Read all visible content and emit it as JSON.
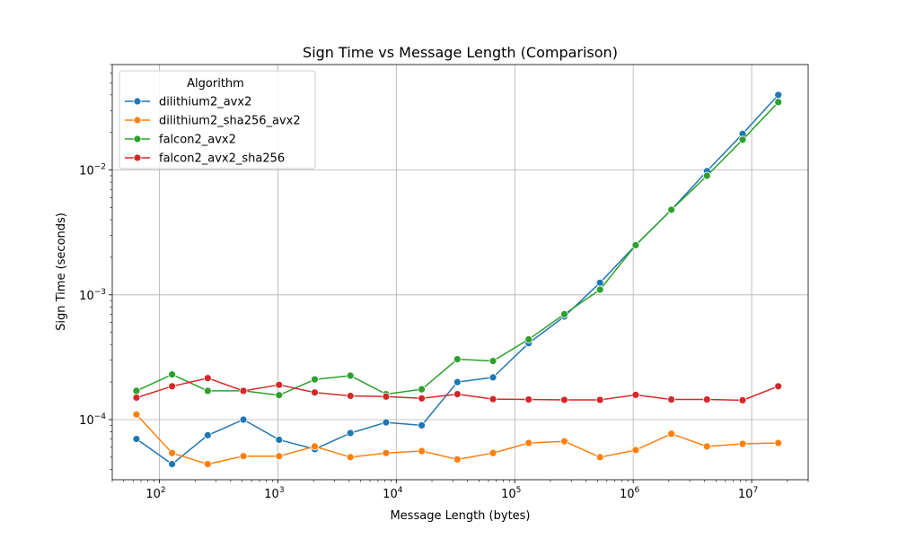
{
  "chart_data": {
    "type": "line",
    "title": "Sign Time vs Message Length (Comparison)",
    "xlabel": "Message Length (bytes)",
    "ylabel": "Sign Time (seconds)",
    "xscale": "log",
    "yscale": "log",
    "xlim": [
      40,
      30000000
    ],
    "ylim": [
      3.3e-05,
      0.07
    ],
    "grid": true,
    "legend_title": "Algorithm",
    "legend_position": "upper-left",
    "x_tick_labels": [
      {
        "base": "10",
        "exp": "2"
      },
      {
        "base": "10",
        "exp": "3"
      },
      {
        "base": "10",
        "exp": "4"
      },
      {
        "base": "10",
        "exp": "5"
      },
      {
        "base": "10",
        "exp": "6"
      },
      {
        "base": "10",
        "exp": "7"
      }
    ],
    "y_tick_labels": [
      {
        "base": "10",
        "exp": "−4"
      },
      {
        "base": "10",
        "exp": "−3"
      },
      {
        "base": "10",
        "exp": "−2"
      }
    ],
    "x": [
      64,
      128,
      256,
      512,
      1024,
      2048,
      4096,
      8192,
      16384,
      32768,
      65536,
      131072,
      262144,
      524288,
      1048576,
      2097152,
      4194304,
      8388608,
      16777216
    ],
    "series": [
      {
        "name": "dilithium2_avx2",
        "color": "#1f77b4",
        "values": [
          7e-05,
          4.4e-05,
          7.5e-05,
          0.0001,
          6.9e-05,
          5.8e-05,
          7.8e-05,
          9.5e-05,
          9e-05,
          0.0002,
          0.000218,
          0.00041,
          0.00067,
          0.00125,
          0.0025,
          0.0048,
          0.0098,
          0.0195,
          0.04
        ]
      },
      {
        "name": "dilithium2_sha256_avx2",
        "color": "#ff7f0e",
        "values": [
          0.00011,
          5.4e-05,
          4.4e-05,
          5.1e-05,
          5.1e-05,
          6.1e-05,
          5e-05,
          5.4e-05,
          5.6e-05,
          4.8e-05,
          5.4e-05,
          6.5e-05,
          6.7e-05,
          5e-05,
          5.7e-05,
          7.7e-05,
          6.1e-05,
          6.4e-05,
          6.5e-05
        ]
      },
      {
        "name": "falcon2_avx2",
        "color": "#2ca02c",
        "values": [
          0.00017,
          0.00023,
          0.00017,
          0.00017,
          0.000157,
          0.00021,
          0.000225,
          0.00016,
          0.000175,
          0.000305,
          0.000295,
          0.00044,
          0.0007,
          0.0011,
          0.0025,
          0.0048,
          0.009,
          0.0175,
          0.035
        ]
      },
      {
        "name": "falcon2_avx2_sha256",
        "color": "#d62728",
        "values": [
          0.00015,
          0.000185,
          0.000215,
          0.00017,
          0.00019,
          0.000165,
          0.000155,
          0.000153,
          0.000148,
          0.00016,
          0.000146,
          0.000145,
          0.000144,
          0.000144,
          0.000158,
          0.000145,
          0.000145,
          0.000143,
          0.000185
        ]
      }
    ]
  }
}
